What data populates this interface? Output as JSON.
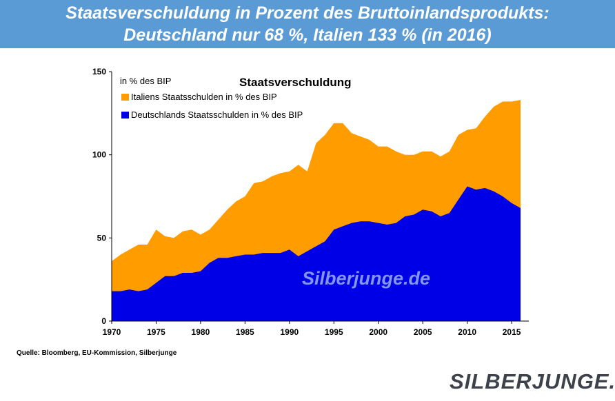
{
  "header": {
    "title_line1": "Staatsverschuldung in Prozent des Bruttoinlandsprodukts:",
    "title_line2": "Deutschland nur 68 %, Italien 133 % (in 2016)"
  },
  "chart_data": {
    "type": "area",
    "title": "Staatsverschuldung",
    "ylabel": "in % des BIP",
    "xlabel": "",
    "xlim": [
      1970,
      2016
    ],
    "ylim": [
      0,
      150
    ],
    "xticks": [
      1970,
      1975,
      1980,
      1985,
      1990,
      1995,
      2000,
      2005,
      2010,
      2015
    ],
    "yticks": [
      0,
      50,
      100,
      150
    ],
    "grid": false,
    "legend_position": "top-left",
    "x": [
      1970,
      1971,
      1972,
      1973,
      1974,
      1975,
      1976,
      1977,
      1978,
      1979,
      1980,
      1981,
      1982,
      1983,
      1984,
      1985,
      1986,
      1987,
      1988,
      1989,
      1990,
      1991,
      1992,
      1993,
      1994,
      1995,
      1996,
      1997,
      1998,
      1999,
      2000,
      2001,
      2002,
      2003,
      2004,
      2005,
      2006,
      2007,
      2008,
      2009,
      2010,
      2011,
      2012,
      2013,
      2014,
      2015,
      2016
    ],
    "series": [
      {
        "name": "Italiens Staatsschulden in % des BIP",
        "color": "#ff9c00",
        "values": [
          36,
          40,
          43,
          46,
          46,
          55,
          51,
          50,
          54,
          55,
          52,
          55,
          61,
          67,
          72,
          75,
          83,
          84,
          87,
          89,
          90,
          94,
          90,
          107,
          112,
          119,
          119,
          113,
          111,
          109,
          105,
          105,
          102,
          100,
          100,
          102,
          102,
          99,
          102,
          112,
          115,
          116,
          123,
          129,
          132,
          132,
          133
        ]
      },
      {
        "name": "Deutschlands Staatsschulden in % des BIP",
        "color": "#0000e6",
        "values": [
          18,
          18,
          19,
          18,
          19,
          23,
          27,
          27,
          29,
          29,
          30,
          35,
          38,
          38,
          39,
          40,
          40,
          41,
          41,
          41,
          43,
          39,
          42,
          45,
          48,
          55,
          57,
          59,
          60,
          60,
          59,
          58,
          59,
          63,
          64,
          67,
          66,
          63,
          65,
          73,
          81,
          79,
          80,
          78,
          75,
          71,
          68
        ]
      }
    ],
    "watermark": "Silberjunge.de"
  },
  "footer": {
    "source": "Quelle: Bloomberg, EU-Kommission,  Silberjunge",
    "logo_text": "SILBERJUNGE."
  }
}
